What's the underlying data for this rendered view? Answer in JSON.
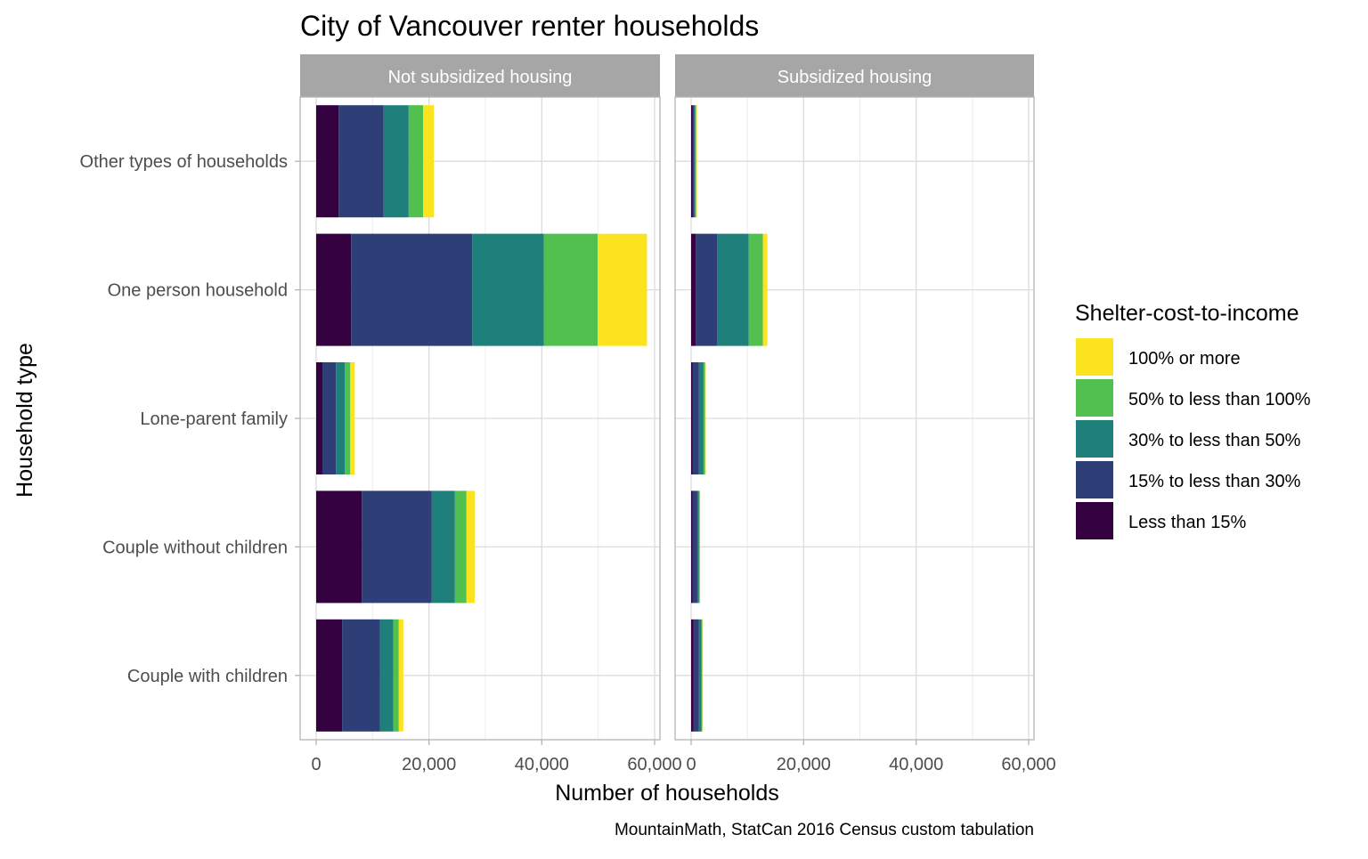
{
  "chart_data": {
    "type": "bar",
    "orientation": "horizontal",
    "stacked": true,
    "title": "City of Vancouver renter households",
    "xlabel": "Number of households",
    "ylabel": "Household type",
    "caption": "MountainMath, StatCan 2016 Census custom tabulation",
    "xlim": [
      0,
      60000
    ],
    "x_ticks": [
      0,
      20000,
      40000,
      60000
    ],
    "x_tick_labels": [
      "0",
      "20,000",
      "40,000",
      "60,000"
    ],
    "grid": true,
    "categories": [
      "Other types of households",
      "One person household",
      "Lone-parent family",
      "Couple without children",
      "Couple with children"
    ],
    "legend": {
      "title": "Shelter-cost-to-income",
      "placement": "right",
      "entries": [
        "100% or more",
        "50% to less than 100%",
        "30% to less than 50%",
        "15% to less than 30%",
        "Less than 15%"
      ]
    },
    "series_colors": {
      "Less than 15%": "#34003f",
      "15% to less than 30%": "#2e3e76",
      "30% to less than 50%": "#1f7f7a",
      "50% to less than 100%": "#51c04f",
      "100% or more": "#fbe41f"
    },
    "panels": [
      {
        "label": "Not subsidized housing",
        "series": [
          {
            "name": "Less than 15%",
            "values": [
              4000,
              6200,
              1100,
              8100,
              4600
            ]
          },
          {
            "name": "15% to less than 30%",
            "values": [
              7950,
              21450,
              2400,
              12400,
              6700
            ]
          },
          {
            "name": "30% to less than 50%",
            "values": [
              4450,
              12700,
              1600,
              4100,
              2400
            ]
          },
          {
            "name": "50% to less than 100%",
            "values": [
              2550,
              9550,
              950,
              2050,
              950
            ]
          },
          {
            "name": "100% or more",
            "values": [
              1900,
              8750,
              800,
              1450,
              800
            ]
          }
        ]
      },
      {
        "label": "Subsidized housing",
        "series": [
          {
            "name": "Less than 15%",
            "values": [
              300,
              800,
              300,
              300,
              450
            ]
          },
          {
            "name": "15% to less than 30%",
            "values": [
              300,
              3800,
              1100,
              800,
              950
            ]
          },
          {
            "name": "30% to less than 50%",
            "values": [
              150,
              5650,
              800,
              300,
              470
            ]
          },
          {
            "name": "50% to less than 100%",
            "values": [
              150,
              2500,
              300,
              150,
              110
            ]
          },
          {
            "name": "100% or more",
            "values": [
              150,
              800,
              100,
              60,
              50
            ]
          }
        ]
      }
    ]
  }
}
